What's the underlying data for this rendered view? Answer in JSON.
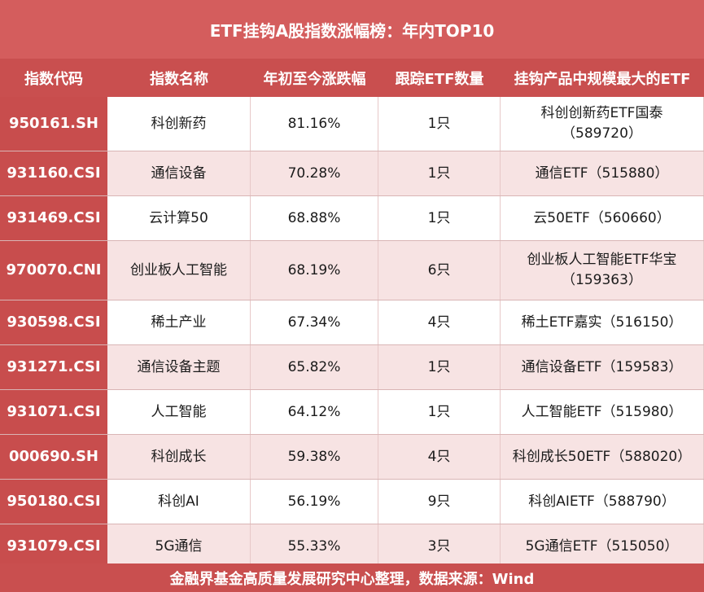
{
  "title": "ETF挂钩A股指数涨幅榜：年内TOP10",
  "headers": [
    "指数代码",
    "指数名称",
    "年初至今涨跌幅",
    "跟踪ETF数量",
    "挂钩产品中规模最大的ETF"
  ],
  "rows": [
    {
      "code": "950161.SH",
      "name": "科创新药",
      "change": "81.16%",
      "count": "1只",
      "etf_line1": "科创创新药ETF国泰",
      "etf_line2": "（589720）"
    },
    {
      "code": "931160.CSI",
      "name": "通信设备",
      "change": "70.28%",
      "count": "1只",
      "etf_line1": "通信ETF（515880）",
      "etf_line2": ""
    },
    {
      "code": "931469.CSI",
      "name": "云计算50",
      "change": "68.88%",
      "count": "1只",
      "etf_line1": "云50ETF（560660）",
      "etf_line2": ""
    },
    {
      "code": "970070.CNI",
      "name": "创业板人工智能",
      "change": "68.19%",
      "count": "6只",
      "etf_line1": "创业板人工智能ETF华宝",
      "etf_line2": "（159363）"
    },
    {
      "code": "930598.CSI",
      "name": "稀土产业",
      "change": "67.34%",
      "count": "4只",
      "etf_line1": "稀土ETF嘉实（516150）",
      "etf_line2": ""
    },
    {
      "code": "931271.CSI",
      "name": "通信设备主题",
      "change": "65.82%",
      "count": "1只",
      "etf_line1": "通信设备ETF（159583）",
      "etf_line2": ""
    },
    {
      "code": "931071.CSI",
      "name": "人工智能",
      "change": "64.12%",
      "count": "1只",
      "etf_line1": "人工智能ETF（515980）",
      "etf_line2": ""
    },
    {
      "code": "000690.SH",
      "name": "科创成长",
      "change": "59.38%",
      "count": "4只",
      "etf_line1": "科创成长50ETF（588020）",
      "etf_line2": ""
    },
    {
      "code": "950180.CSI",
      "name": "科创AI",
      "change": "56.19%",
      "count": "9只",
      "etf_line1": "科创AIETF（588790）",
      "etf_line2": ""
    },
    {
      "code": "931079.CSI",
      "name": "5G通信",
      "change": "55.33%",
      "count": "3只",
      "etf_line1": "5G通信ETF（515050）",
      "etf_line2": ""
    }
  ],
  "footer": "金融界基金高质量发展研究中心整理，数据来源：Wind",
  "colors": {
    "accent": "#c94f4f",
    "title_bg": "#d45d5d",
    "alt_row": "#f7e3e3"
  }
}
